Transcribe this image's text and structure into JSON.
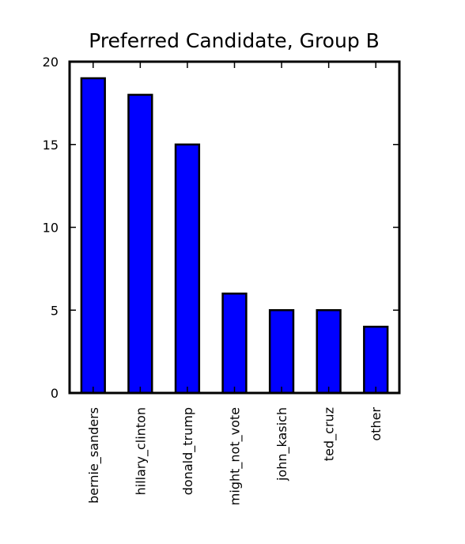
{
  "chart_data": {
    "type": "bar",
    "title": "Preferred Candidate, Group B",
    "xlabel": "",
    "ylabel": "",
    "categories": [
      "bernie_sanders",
      "hillary_clinton",
      "donald_trump",
      "might_not_vote",
      "john_kasich",
      "ted_cruz",
      "other"
    ],
    "values": [
      19,
      18,
      15,
      6,
      5,
      5,
      4
    ],
    "ylim": [
      0,
      20
    ],
    "yticks": [
      "0",
      "5",
      "10",
      "15",
      "20"
    ],
    "grid": false,
    "legend": "none",
    "bar_color": "#0000ff",
    "edge_color": "#000000"
  }
}
